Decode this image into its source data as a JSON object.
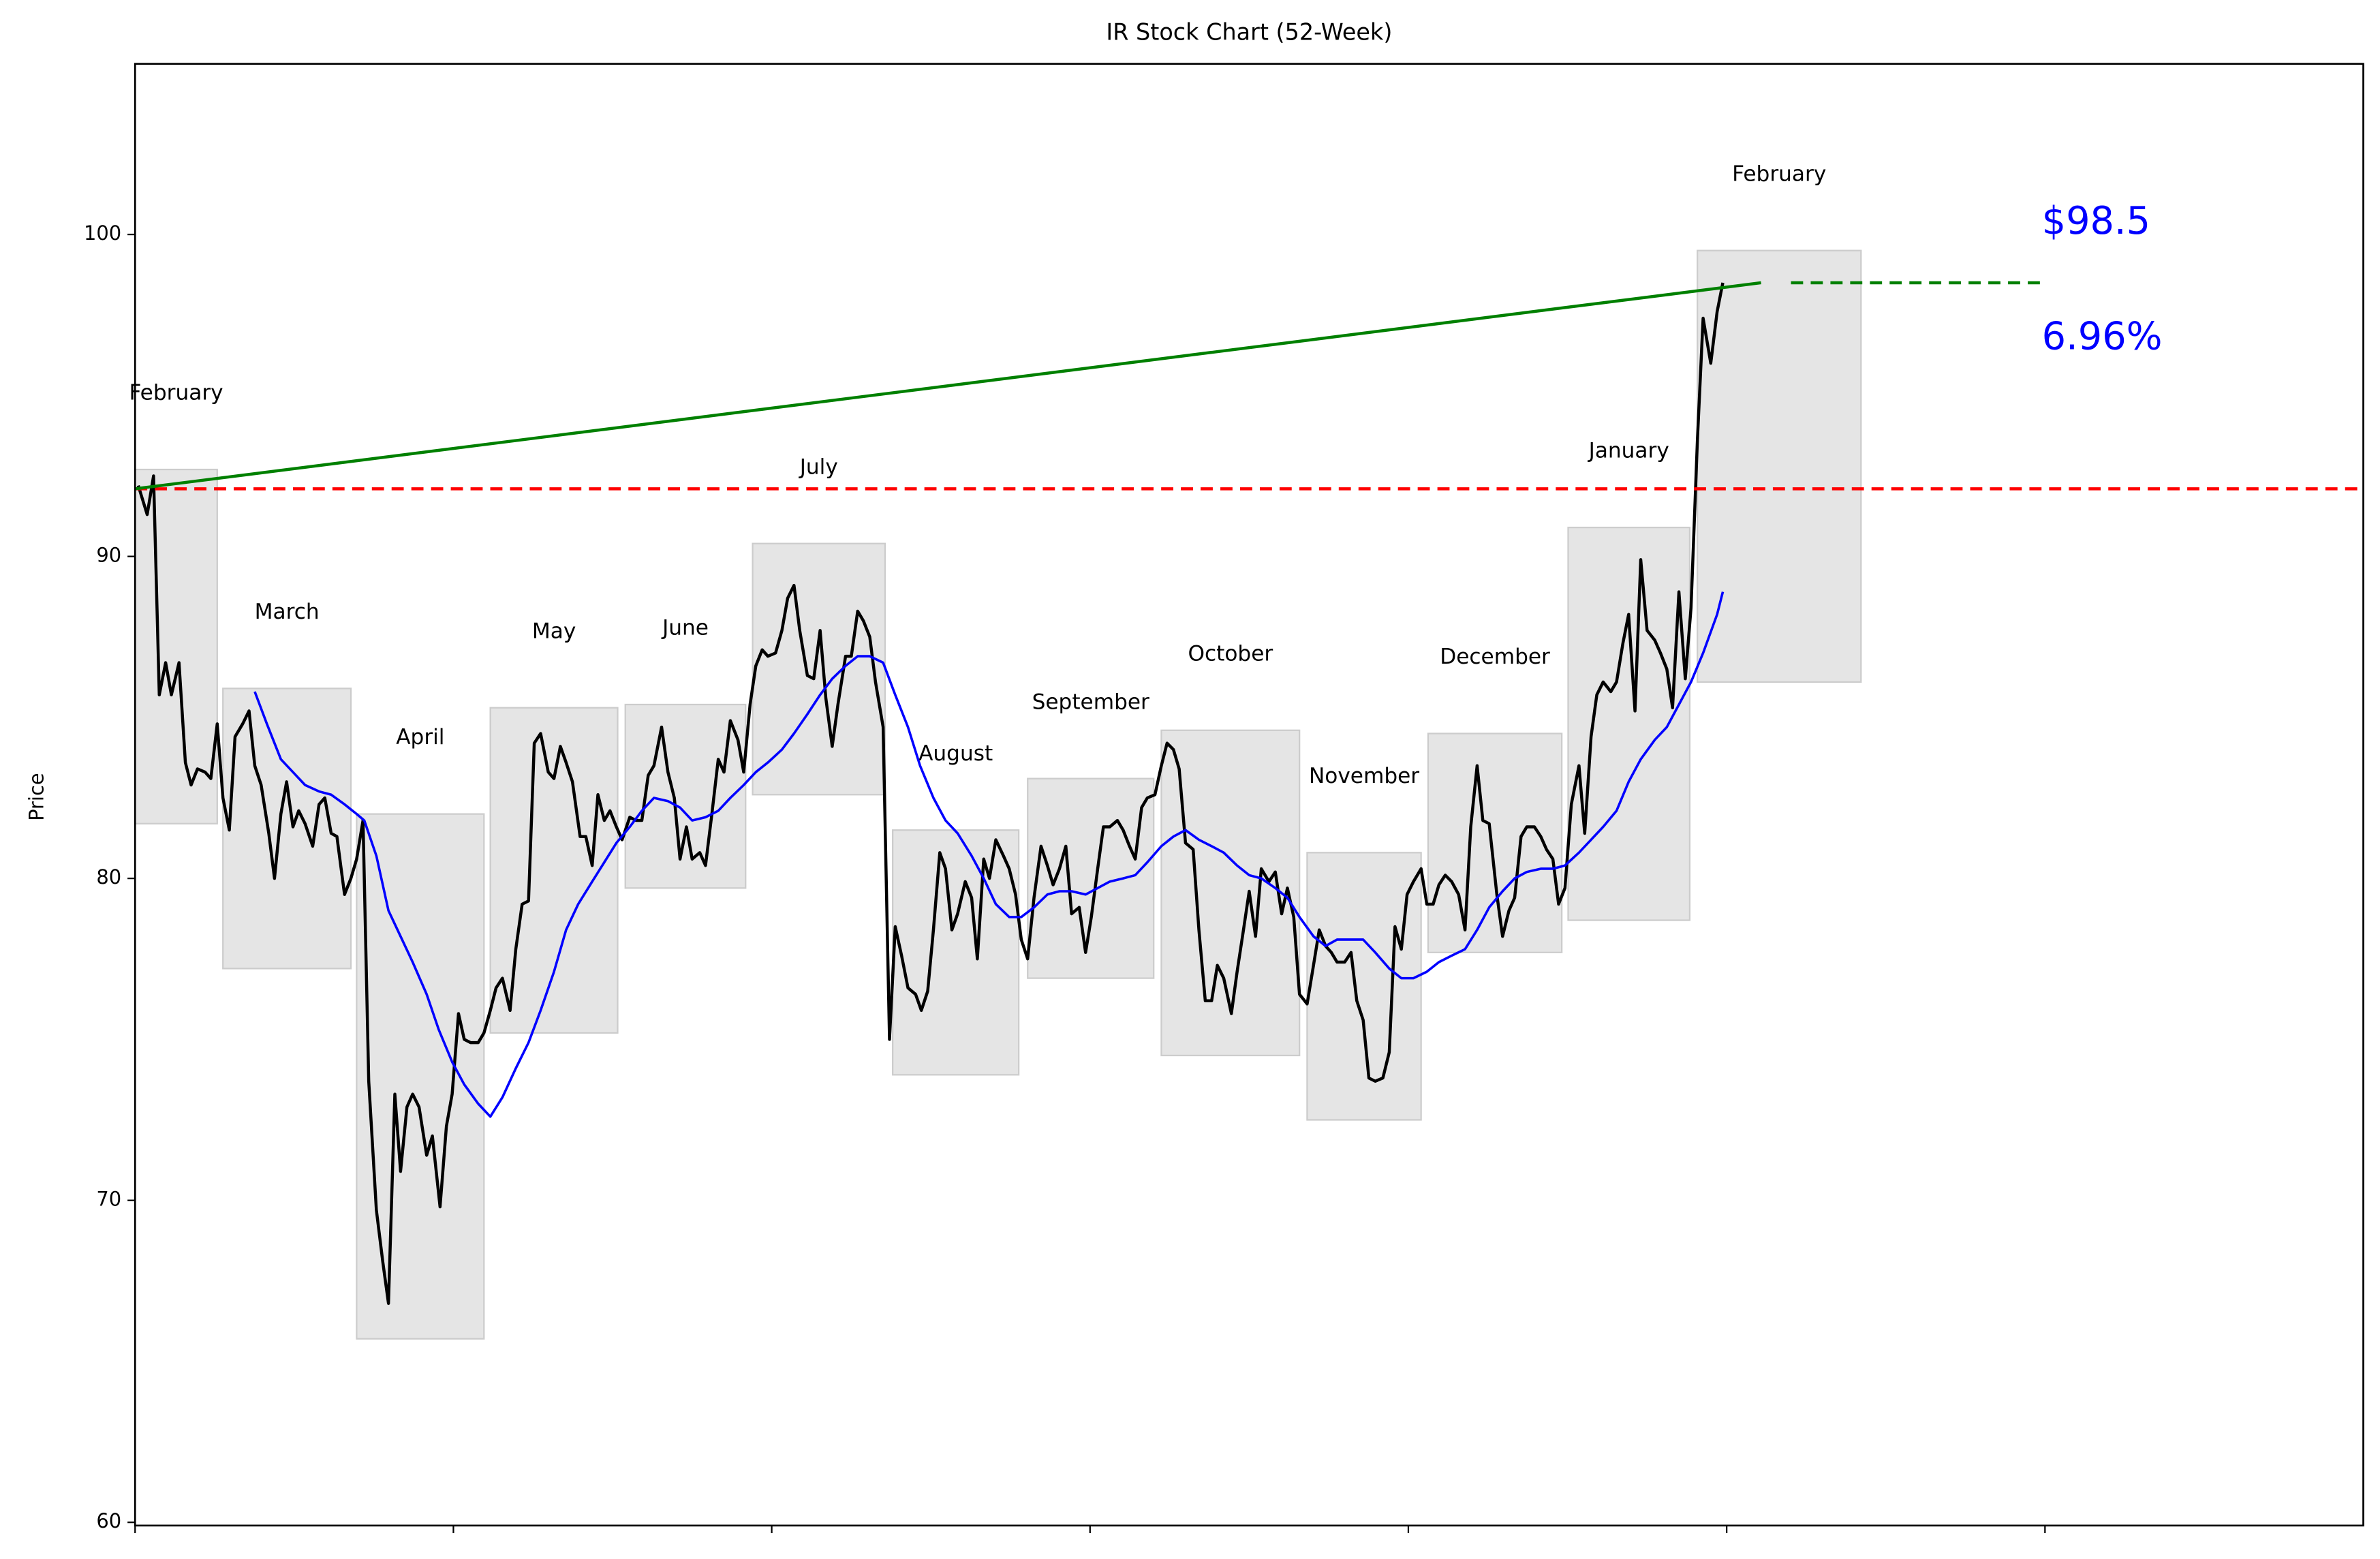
{
  "chart_data": {
    "type": "line",
    "title": "IR Stock Chart (52-Week)",
    "y_label": "Price",
    "xlim": [
      0,
      350
    ],
    "xticks": [
      0,
      50,
      100,
      150,
      200,
      250,
      300
    ],
    "ylim": [
      59.9,
      105.3
    ],
    "yticks": [
      60,
      70,
      80,
      90,
      100
    ],
    "series": [
      {
        "color": "#000000",
        "x": [
          0.5,
          1.9,
          2.9,
          3.8,
          4.8,
          5.7,
          6.9,
          7.9,
          8.8,
          9.8,
          11,
          11.9,
          12.9,
          13.8,
          14.8,
          15.7,
          16.9,
          17.9,
          18.8,
          19.8,
          21,
          21.9,
          22.9,
          23.8,
          24.8,
          25.7,
          26.7,
          27.9,
          28.9,
          29.8,
          30.8,
          31.7,
          32.9,
          33.9,
          34.8,
          35.8,
          36.7,
          37.9,
          38.9,
          39.8,
          40.8,
          41.7,
          42.7,
          43.6,
          44.6,
          45.8,
          46.7,
          47.9,
          48.9,
          49.8,
          50.8,
          51.7,
          52.7,
          53.9,
          54.8,
          55.8,
          56.7,
          57.7,
          58.9,
          59.8,
          60.8,
          61.8,
          62.7,
          63.7,
          64.9,
          65.8,
          66.8,
          67.7,
          68.7,
          69.9,
          70.8,
          71.8,
          72.7,
          73.7,
          74.6,
          75.6,
          76.5,
          77.7,
          78.7,
          79.6,
          80.6,
          81.5,
          82.7,
          83.7,
          84.7,
          85.6,
          86.6,
          87.5,
          88.7,
          89.6,
          90.6,
          91.6,
          92.5,
          93.5,
          94.7,
          95.6,
          96.6,
          97.5,
          98.5,
          99.4,
          100.6,
          101.6,
          102.5,
          103.5,
          104.4,
          105.6,
          106.6,
          107.6,
          108.5,
          109.5,
          110.4,
          111.6,
          112.5,
          113.5,
          114.4,
          115.4,
          116.3,
          117.5,
          118.5,
          119.4,
          120.4,
          121.4,
          122.6,
          123.5,
          124.5,
          125.4,
          126.4,
          127.3,
          128.3,
          129.2,
          130.4,
          131.4,
          132.3,
          133.3,
          134.2,
          135.2,
          136.4,
          137.3,
          138.3,
          139.2,
          140.2,
          141.2,
          142.3,
          143.3,
          144.2,
          145.2,
          146.2,
          147.1,
          148.3,
          149.3,
          150.2,
          151.2,
          152.1,
          153.1,
          154.3,
          155.2,
          156.2,
          157.1,
          158.1,
          159,
          160.2,
          161.2,
          162.1,
          163.1,
          164,
          165,
          166.2,
          167.1,
          168.1,
          169.1,
          170,
          171,
          172.2,
          173.1,
          174.1,
          175,
          176,
          176.9,
          178.1,
          179.1,
          180.1,
          181,
          182,
          182.9,
          184.1,
          185.1,
          186,
          187,
          187.9,
          188.8,
          190,
          191,
          191.9,
          192.9,
          193.8,
          194.8,
          196,
          197,
          197.9,
          198.9,
          199.8,
          200.8,
          202,
          202.9,
          203.9,
          204.8,
          205.8,
          206.8,
          207.9,
          208.9,
          209.8,
          210.8,
          211.7,
          212.7,
          213.9,
          214.8,
          215.8,
          216.7,
          217.7,
          218.6,
          219.8,
          220.8,
          221.7,
          222.7,
          223.6,
          224.6,
          225.6,
          226.8,
          227.7,
          228.7,
          229.6,
          230.6,
          231.8,
          232.7,
          233.7,
          234.6,
          235.6,
          236.5,
          237.5,
          238.7,
          239.6,
          240.6,
          241.5,
          242.5,
          243.5,
          244.4,
          245.4,
          246.3,
          247.5,
          248.5,
          249.4
        ],
        "values": [
          92.2,
          91.3,
          92.5,
          85.7,
          86.7,
          85.7,
          86.7,
          83.6,
          82.9,
          83.4,
          83.3,
          83.1,
          84.8,
          82.5,
          81.5,
          84.4,
          84.8,
          85.2,
          83.5,
          82.9,
          81.4,
          80,
          82,
          83,
          81.6,
          82.1,
          81.7,
          81,
          82.3,
          82.5,
          81.4,
          81.3,
          79.5,
          80,
          80.6,
          81.8,
          73.7,
          69.7,
          68.1,
          66.8,
          73.3,
          70.9,
          72.9,
          73.3,
          72.9,
          71.4,
          72,
          69.8,
          72.3,
          73.3,
          75.8,
          75,
          74.9,
          74.9,
          75.2,
          75.9,
          76.6,
          76.9,
          75.9,
          77.8,
          79.2,
          79.3,
          84.2,
          84.5,
          83.3,
          83.1,
          84.1,
          83.6,
          83,
          81.3,
          81.3,
          80.4,
          82.6,
          81.8,
          82.1,
          81.6,
          81.2,
          81.9,
          81.8,
          81.8,
          83.2,
          83.5,
          84.7,
          83.3,
          82.5,
          80.6,
          81.6,
          80.6,
          80.8,
          80.4,
          82,
          83.7,
          83.3,
          84.9,
          84.3,
          83.3,
          85.4,
          86.6,
          87.1,
          86.9,
          87,
          87.7,
          88.7,
          89.1,
          87.7,
          86.3,
          86.2,
          87.7,
          85.6,
          84.1,
          85.4,
          86.9,
          86.9,
          88.3,
          88,
          87.5,
          86.1,
          84.7,
          75,
          78.5,
          77.6,
          76.6,
          76.4,
          75.9,
          76.5,
          78.4,
          80.8,
          80.3,
          78.4,
          78.9,
          79.9,
          79.4,
          77.5,
          80.6,
          80,
          81.2,
          80.7,
          80.3,
          79.5,
          78.1,
          77.5,
          79.4,
          81,
          80.4,
          79.8,
          80.3,
          81,
          78.9,
          79.1,
          77.7,
          78.8,
          80.3,
          81.6,
          81.6,
          81.8,
          81.5,
          81,
          80.6,
          82.2,
          82.5,
          82.6,
          83.5,
          84.2,
          84,
          83.4,
          81.1,
          80.9,
          78.4,
          76.2,
          76.2,
          77.3,
          76.9,
          75.8,
          77.1,
          78.4,
          79.6,
          78.2,
          80.3,
          79.9,
          80.2,
          78.9,
          79.7,
          78.8,
          76.4,
          76.1,
          77.3,
          78.4,
          77.9,
          77.7,
          77.4,
          77.4,
          77.7,
          76.2,
          75.6,
          73.8,
          73.7,
          73.8,
          74.6,
          78.5,
          77.8,
          79.5,
          79.9,
          80.3,
          79.2,
          79.2,
          79.8,
          80.1,
          79.9,
          79.5,
          78.4,
          81.6,
          83.5,
          81.8,
          81.7,
          79.5,
          78.2,
          79,
          79.4,
          81.3,
          81.6,
          81.6,
          81.3,
          80.9,
          80.6,
          79.2,
          79.7,
          82.3,
          83.5,
          81.4,
          84.4,
          85.7,
          86.1,
          85.8,
          86.1,
          87.3,
          88.2,
          85.2,
          89.9,
          87.7,
          87.4,
          87,
          86.5,
          85.3,
          88.9,
          86.2,
          88.4,
          93.6,
          97.4,
          96,
          97.6,
          98.5
        ]
      },
      {
        "color": "#0000ff",
        "x": [
          18.8,
          20.7,
          22.9,
          24.8,
          26.7,
          28.9,
          30.8,
          32.9,
          34.8,
          36,
          37.9,
          39.8,
          41.7,
          43.6,
          45.8,
          47.7,
          49.8,
          51.7,
          53.9,
          55.8,
          57.7,
          59.8,
          61.8,
          63.7,
          65.8,
          67.7,
          69.6,
          71.8,
          73.7,
          75.6,
          77.7,
          79.6,
          81.5,
          83.7,
          85.6,
          87.5,
          89.6,
          91.6,
          93.5,
          95.6,
          97.5,
          99.4,
          101.6,
          103.5,
          105.6,
          107.6,
          109.5,
          111.6,
          113.5,
          115.4,
          117.5,
          119.4,
          121.4,
          123.3,
          125.4,
          127.3,
          129.2,
          131.4,
          133.3,
          135.2,
          137.3,
          139.2,
          141.2,
          143.3,
          145.2,
          147.1,
          149.3,
          151.2,
          153.1,
          155.2,
          157.1,
          159,
          161.2,
          163.1,
          165,
          167.1,
          169.1,
          171,
          173.1,
          175,
          176.9,
          179.1,
          181,
          182.9,
          185.1,
          187,
          188.8,
          191,
          192.9,
          194.8,
          197,
          198.9,
          200.8,
          202.9,
          204.8,
          206.8,
          208.9,
          210.8,
          212.7,
          214.8,
          216.7,
          218.6,
          220.8,
          222.7,
          224.6,
          226.8,
          228.7,
          230.6,
          232.7,
          234.6,
          236.5,
          238.7,
          240.6,
          242.5,
          244.4,
          246.3,
          248.5,
          249.4
        ],
        "values": [
          85.8,
          84.8,
          83.7,
          83.3,
          82.9,
          82.7,
          82.6,
          82.3,
          82,
          81.8,
          80.7,
          79,
          78.2,
          77.4,
          76.4,
          75.3,
          74.3,
          73.6,
          73,
          72.6,
          73.2,
          74.1,
          74.9,
          75.9,
          77.1,
          78.4,
          79.2,
          79.9,
          80.5,
          81.1,
          81.6,
          82.1,
          82.5,
          82.4,
          82.2,
          81.8,
          81.9,
          82.1,
          82.5,
          82.9,
          83.3,
          83.6,
          84,
          84.5,
          85.1,
          85.7,
          86.2,
          86.6,
          86.9,
          86.9,
          86.7,
          85.7,
          84.7,
          83.5,
          82.5,
          81.8,
          81.4,
          80.7,
          80,
          79.2,
          78.8,
          78.8,
          79.1,
          79.5,
          79.6,
          79.6,
          79.5,
          79.7,
          79.9,
          80,
          80.1,
          80.5,
          81,
          81.3,
          81.5,
          81.2,
          81,
          80.8,
          80.4,
          80.1,
          80,
          79.7,
          79.4,
          78.8,
          78.2,
          77.9,
          78.1,
          78.1,
          78.1,
          77.7,
          77.2,
          76.9,
          76.9,
          77.1,
          77.4,
          77.6,
          77.8,
          78.4,
          79.1,
          79.6,
          80,
          80.2,
          80.3,
          80.3,
          80.4,
          80.8,
          81.2,
          81.6,
          82.1,
          83,
          83.7,
          84.3,
          84.7,
          85.4,
          86.1,
          87,
          88.2,
          88.9
        ]
      }
    ],
    "months": {
      "color": "#e5e5e5",
      "boxes": [
        {
          "label": "February",
          "x": [
            0,
            12.9
          ],
          "range": [
            81.7,
            92.7
          ]
        },
        {
          "label": "March",
          "x": [
            13.8,
            33.9
          ],
          "range": [
            77.2,
            85.9
          ]
        },
        {
          "label": "April",
          "x": [
            34.8,
            54.8
          ],
          "range": [
            65.7,
            82.0
          ]
        },
        {
          "label": "May",
          "x": [
            55.8,
            75.8
          ],
          "range": [
            75.2,
            85.3
          ]
        },
        {
          "label": "June",
          "x": [
            77,
            95.9
          ],
          "range": [
            79.7,
            85.4
          ]
        },
        {
          "label": "July",
          "x": [
            97,
            117.8
          ],
          "range": [
            82.6,
            90.4
          ]
        },
        {
          "label": "August",
          "x": [
            119,
            138.8
          ],
          "range": [
            73.9,
            81.5
          ]
        },
        {
          "label": "September",
          "x": [
            140.2,
            160
          ],
          "range": [
            76.9,
            83.1
          ]
        },
        {
          "label": "October",
          "x": [
            161.2,
            182.9
          ],
          "range": [
            74.5,
            84.6
          ]
        },
        {
          "label": "November",
          "x": [
            184.1,
            202
          ],
          "range": [
            72.5,
            80.8
          ]
        },
        {
          "label": "December",
          "x": [
            203.1,
            224.1
          ],
          "range": [
            77.7,
            84.5
          ]
        },
        {
          "label": "January",
          "x": [
            225.1,
            244.2
          ],
          "range": [
            78.7,
            90.9
          ]
        },
        {
          "label": "February",
          "x": [
            245.4,
            271.1
          ],
          "range": [
            86.1,
            99.5
          ]
        }
      ]
    },
    "start_line": {
      "value": 92.1,
      "color": "#ff0000"
    },
    "trend_line": {
      "x": [
        0,
        255.4
      ],
      "values": [
        92.1,
        98.5
      ],
      "color": "#008000"
    },
    "current_line": {
      "x": [
        260.1,
        299.5
      ],
      "value": 98.5,
      "color": "#008000"
    },
    "annotations": {
      "color": "#0000ff",
      "price": "$98.5",
      "change": "6.96%"
    }
  }
}
